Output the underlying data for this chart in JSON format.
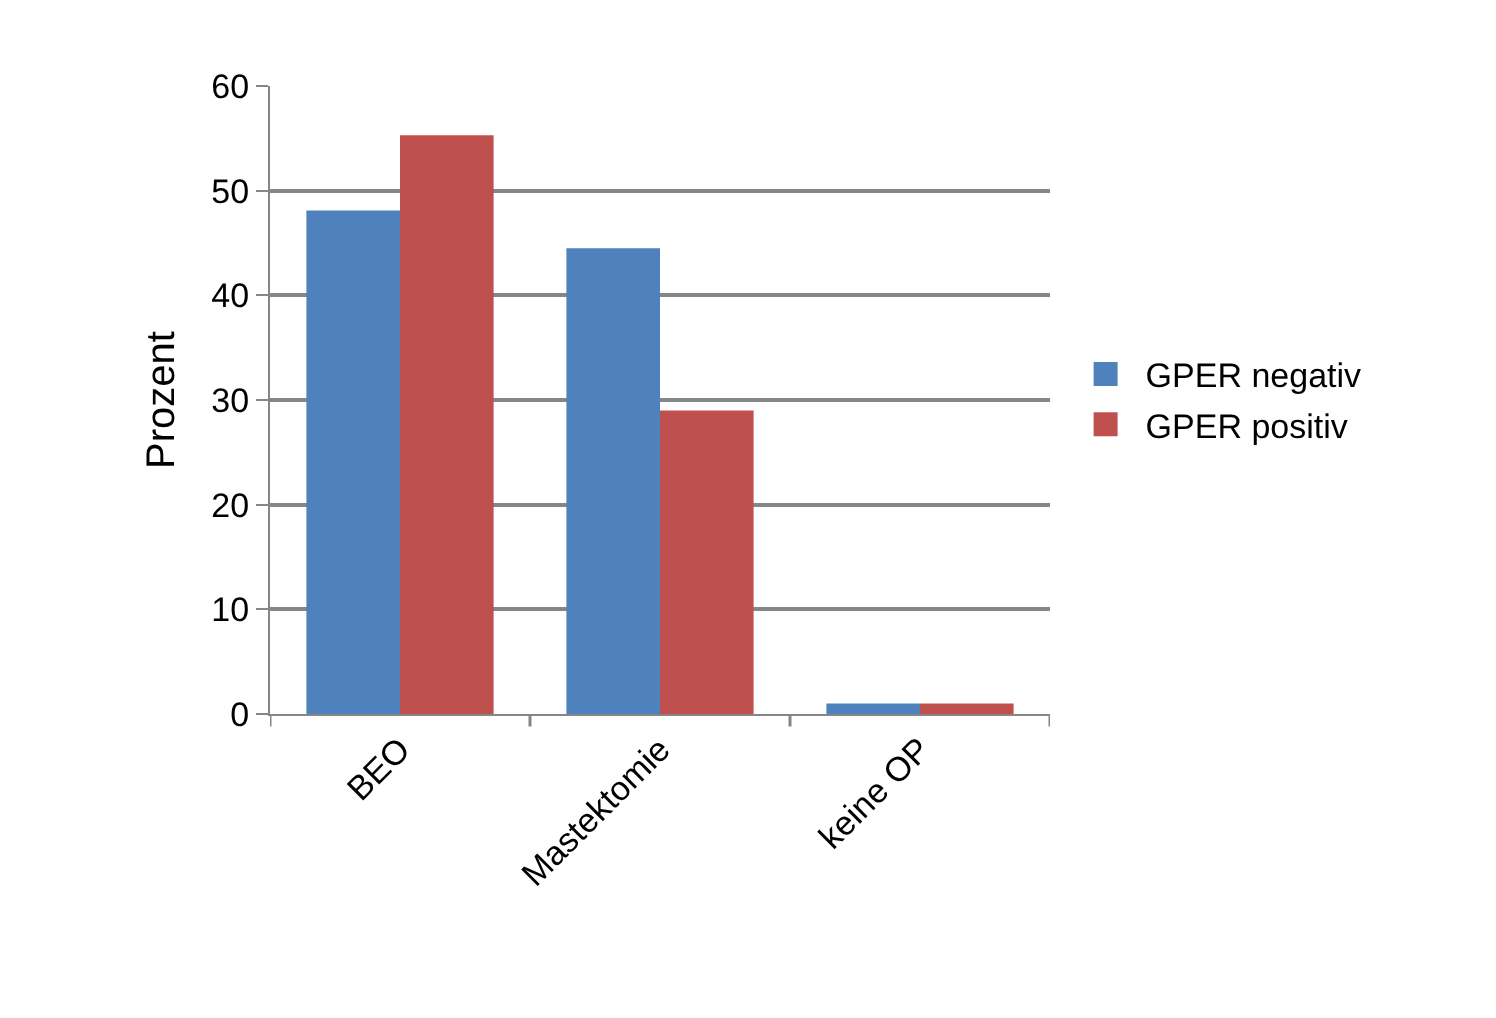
{
  "chart_data": {
    "type": "bar",
    "ylabel": "Prozent",
    "categories": [
      "BEO",
      "Mastektomie",
      "keine OP"
    ],
    "series": [
      {
        "name": "GPER negativ",
        "color": "#4f81bd",
        "values": [
          48.1,
          44.5,
          1.0
        ]
      },
      {
        "name": "GPER positiv",
        "color": "#c0504d",
        "values": [
          55.3,
          29.0,
          1.0
        ]
      }
    ],
    "ylim": [
      0,
      60
    ],
    "yticks": [
      0,
      10,
      20,
      30,
      40,
      50,
      60
    ],
    "grid": "y",
    "legend": "right"
  }
}
